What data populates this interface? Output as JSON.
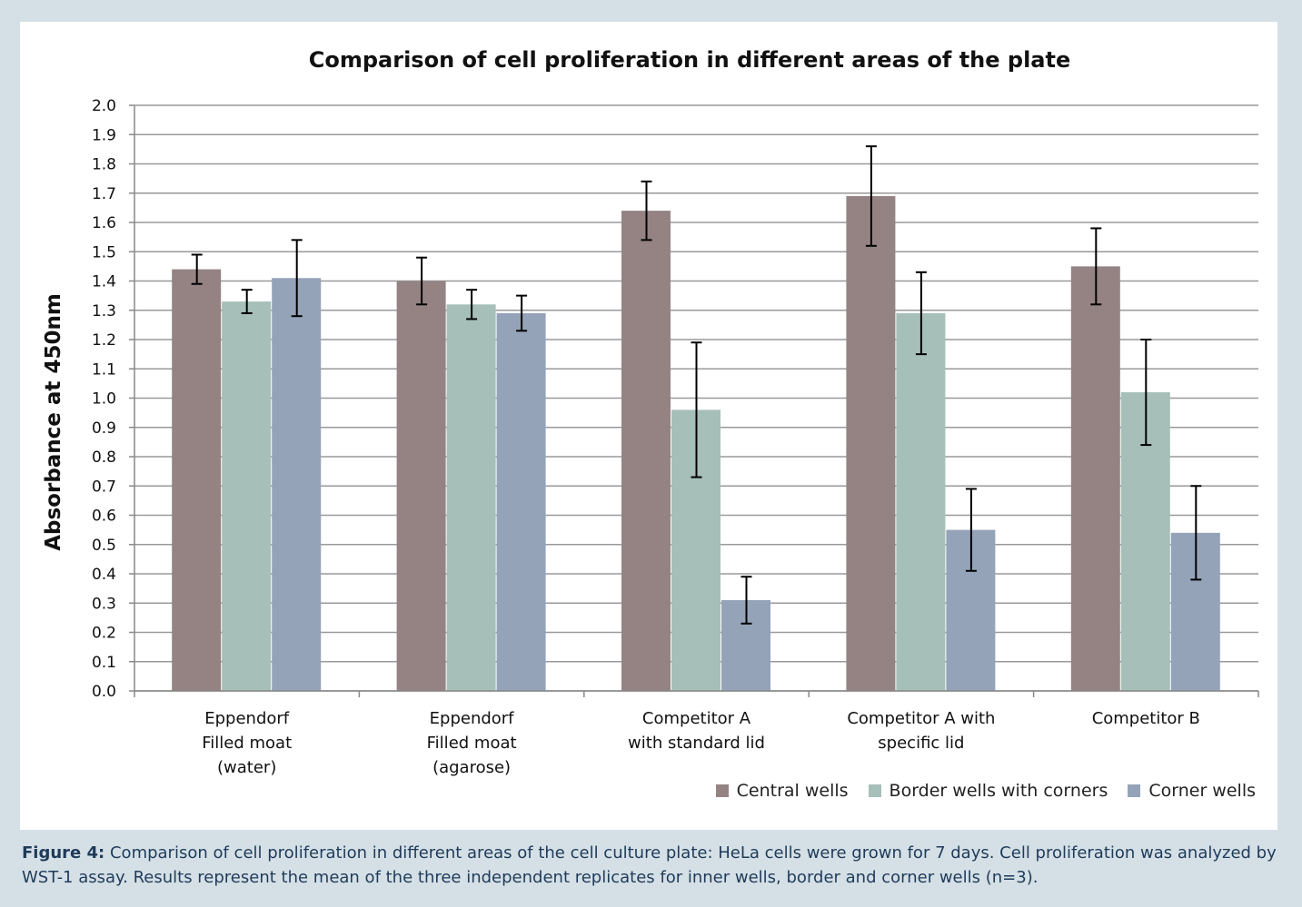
{
  "chart_data": {
    "type": "bar",
    "title": "Comparison of cell proliferation in different areas of the plate",
    "y_label": "Absorbance at 450nm",
    "categories": [
      "Eppendorf\nFilled moat\n(water)",
      "Eppendorf\nFilled moat\n(agarose)",
      "Competitor A\nwith standard lid",
      "Competitor A with\nspecific lid",
      "Competitor B"
    ],
    "series": [
      {
        "name": "Central wells",
        "color": "#958383",
        "values": [
          1.44,
          1.4,
          1.64,
          1.69,
          1.45
        ],
        "errors": [
          0.05,
          0.08,
          0.1,
          0.17,
          0.13
        ]
      },
      {
        "name": "Border wells with corners",
        "color": "#a6bfb8",
        "values": [
          1.33,
          1.32,
          0.96,
          1.29,
          1.02
        ],
        "errors": [
          0.04,
          0.05,
          0.23,
          0.14,
          0.18
        ]
      },
      {
        "name": "Corner wells",
        "color": "#94a3b8",
        "values": [
          1.41,
          1.29,
          0.31,
          0.55,
          0.54
        ],
        "errors": [
          0.13,
          0.06,
          0.08,
          0.14,
          0.16
        ]
      }
    ],
    "ylim": [
      0,
      2
    ],
    "yticks": [
      {
        "value": 0,
        "label": "0.0"
      },
      0.1,
      0.2,
      0.3,
      0.4,
      0.5,
      0.6,
      0.7,
      0.8,
      0.9,
      {
        "value": 1,
        "label": "1.0"
      },
      1.1,
      1.2,
      1.3,
      1.4,
      1.5,
      1.6,
      1.7,
      1.8,
      1.9,
      {
        "value": 2,
        "label": "2.0"
      }
    ],
    "grid": true,
    "legend": "bottom-right"
  },
  "caption": {
    "label": "Figure 4:",
    "text": "Comparison of cell proliferation in different areas of the cell culture plate: HeLa cells were grown for 7 days. Cell proliferation was analyzed by WST-1 assay. Results represent the mean of the three independent replicates for inner wells, border and corner wells (n=3)."
  }
}
